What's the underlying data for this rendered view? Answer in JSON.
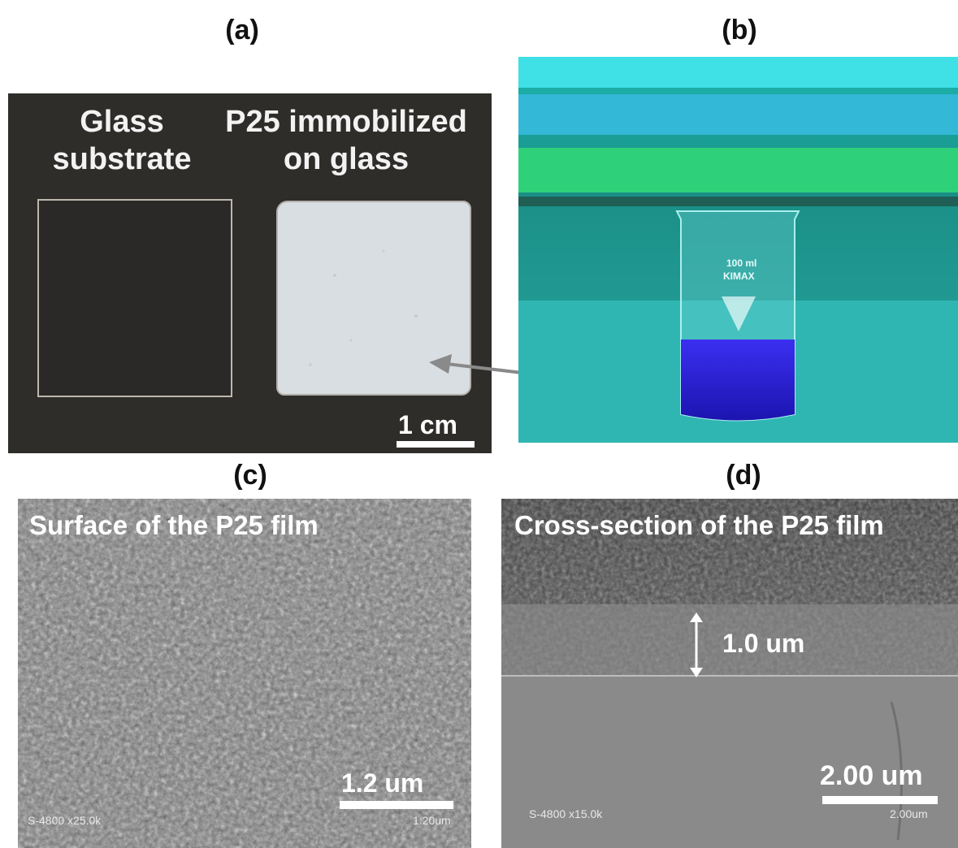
{
  "labels": {
    "a": "(a)",
    "b": "(b)",
    "c": "(c)",
    "d": "(d)"
  },
  "panel_a": {
    "left_heading_line1": "Glass",
    "left_heading_line2": "substrate",
    "right_heading_line1": "P25 immobilized",
    "right_heading_line2": "on glass",
    "scale_label": "1 cm"
  },
  "panel_b": {
    "beaker_line1": "100 ml",
    "beaker_line2": "KIMAX"
  },
  "panel_c": {
    "title": "Surface of the P25 film",
    "scale_label": "1.2 um",
    "instrument_text": "S-4800 x25.0k",
    "instrument_scale": "1.20um"
  },
  "panel_d": {
    "title": "Cross-section of the P25 film",
    "thickness_label": "1.0 um",
    "scale_label": "2.00 um",
    "instrument_text": "S-4800 x15.0k",
    "instrument_scale": "2.00um"
  },
  "colors": {
    "background_a": "#2f2d2a",
    "liquid": "#2a1fd6",
    "uv_glow": "#27d3cf",
    "sem_gray": "#7c7c7c"
  }
}
